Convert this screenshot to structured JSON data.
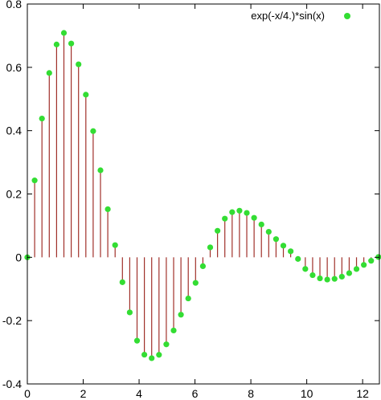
{
  "chart_data": {
    "type": "scatter",
    "style": "impulses-with-points",
    "series": [
      {
        "name": "exp(-x/4.)*sin(x)",
        "point_color": "#33dd33",
        "stem_color": "#a0302a",
        "x": [
          0,
          0.2618,
          0.5236,
          0.7854,
          1.0472,
          1.309,
          1.5708,
          1.8326,
          2.0944,
          2.3562,
          2.618,
          2.8798,
          3.1416,
          3.4034,
          3.6652,
          3.927,
          4.1888,
          4.4506,
          4.7124,
          4.9742,
          5.236,
          5.4978,
          5.7596,
          6.0214,
          6.2832,
          6.545,
          6.8068,
          7.0686,
          7.3304,
          7.5922,
          7.854,
          8.1158,
          8.3776,
          8.6394,
          8.9012,
          9.163,
          9.4248,
          9.6866,
          9.9484,
          10.2102,
          10.472,
          10.7338,
          10.9956,
          11.2574,
          11.5192,
          11.781,
          12.0428,
          12.3046,
          12.5664
        ],
        "values": [
          0,
          0.2428,
          0.4383,
          0.5821,
          0.6722,
          0.7087,
          0.6752,
          0.6096,
          0.5136,
          0.3985,
          0.2748,
          0.152,
          0.0384,
          -0.0787,
          -0.1741,
          -0.2634,
          -0.3075,
          -0.3186,
          -0.308,
          -0.275,
          -0.2311,
          -0.1813,
          -0.13,
          -0.0808,
          -0.0281,
          0.0314,
          0.0838,
          0.1221,
          0.1426,
          0.1472,
          0.1402,
          0.1247,
          0.1037,
          0.0805,
          0.0575,
          0.0368,
          0.019,
          -0.0052,
          -0.0368,
          -0.0564,
          -0.0665,
          -0.0704,
          -0.0681,
          -0.0612,
          -0.0501,
          -0.0371,
          -0.024,
          -0.011,
          0.001
        ]
      }
    ],
    "xlim": [
      0,
      12.6
    ],
    "ylim": [
      -0.4,
      0.8
    ],
    "xticks": [
      0,
      2,
      4,
      6,
      8,
      10,
      12
    ],
    "xtick_labels": [
      "0",
      "2",
      "4",
      "6",
      "8",
      "10",
      "12"
    ],
    "yticks": [
      -0.4,
      -0.2,
      0,
      0.2,
      0.4,
      0.6,
      0.8
    ],
    "ytick_labels": [
      "-0.4",
      "-0.2",
      "0",
      "0.2",
      "0.4",
      "0.6",
      "0.8"
    ],
    "grid": false,
    "legend": "top-right",
    "title": "",
    "xlabel": "",
    "ylabel": ""
  }
}
